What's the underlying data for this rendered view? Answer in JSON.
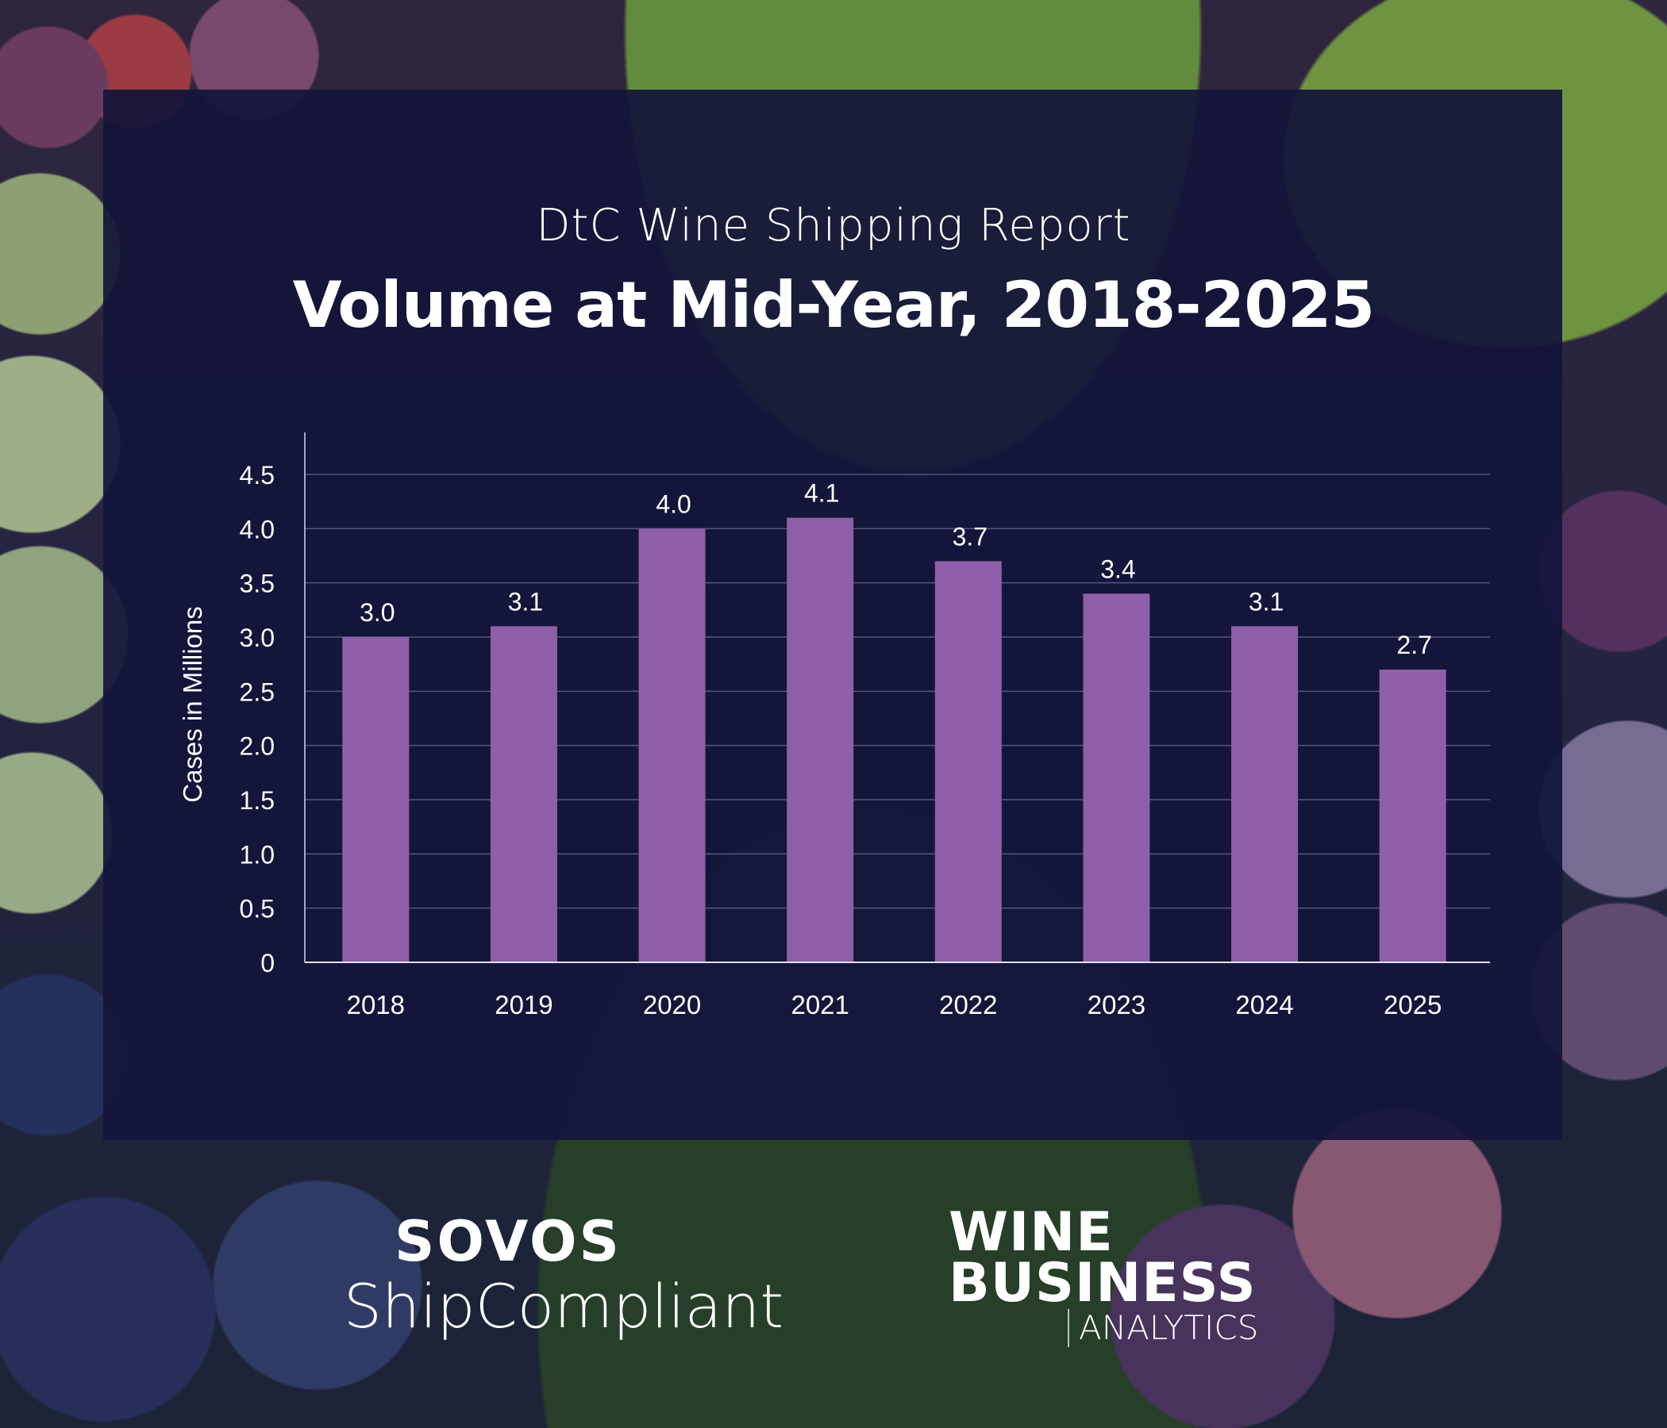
{
  "header": {
    "subtitle": "DtC Wine Shipping Report",
    "title": "Volume at Mid-Year, 2018-2025"
  },
  "colors": {
    "panel": "#13143a",
    "bar": "#8e5fa8",
    "text": "#ffffff",
    "gridline": "#8a8ab0"
  },
  "chart_data": {
    "type": "bar",
    "title": "Volume at Mid-Year, 2018-2025",
    "subtitle": "DtC Wine Shipping Report",
    "xlabel": "",
    "ylabel": "Cases in Millions",
    "categories": [
      "2018",
      "2019",
      "2020",
      "2021",
      "2022",
      "2023",
      "2024",
      "2025"
    ],
    "values": [
      3.0,
      3.1,
      4.0,
      4.1,
      3.7,
      3.4,
      3.1,
      2.7
    ],
    "data_labels": [
      "3.0",
      "3.1",
      "4.0",
      "4.1",
      "3.7",
      "3.4",
      "3.1",
      "2.7"
    ],
    "yticks": [
      "0",
      "0.5",
      "1.0",
      "1.5",
      "2.0",
      "2.5",
      "3.0",
      "3.5",
      "4.0",
      "4.5"
    ],
    "ytick_values": [
      0,
      0.5,
      1.0,
      1.5,
      2.0,
      2.5,
      3.0,
      3.5,
      4.0,
      4.5
    ],
    "ylim": [
      0,
      4.5
    ],
    "grid": true,
    "legend": "none"
  },
  "footer": {
    "logo_left": {
      "line1": "SOVOS",
      "line2": "ShipCompliant"
    },
    "logo_right": {
      "line1": "WINE",
      "line2": "BUSINESS",
      "line3": "ANALYTICS"
    }
  }
}
